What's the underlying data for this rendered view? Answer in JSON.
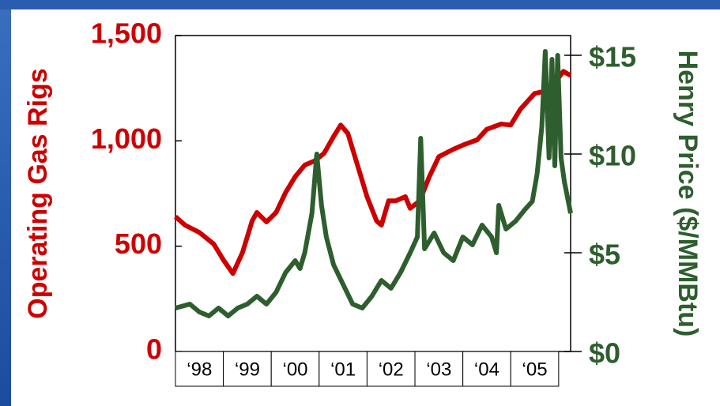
{
  "chart_data": {
    "type": "line",
    "ylabel": "Operating Gas Rigs",
    "y2label": "Henry Price ($/MMBtu)",
    "xlim": [
      1998,
      2006.25
    ],
    "xticks": [
      {
        "value": 1998.5,
        "label": "‘98"
      },
      {
        "value": 1999.5,
        "label": "‘99"
      },
      {
        "value": 2000.5,
        "label": "‘00"
      },
      {
        "value": 2001.5,
        "label": "‘01"
      },
      {
        "value": 2002.5,
        "label": "‘02"
      },
      {
        "value": 2003.5,
        "label": "‘03"
      },
      {
        "value": 2004.5,
        "label": "‘04"
      },
      {
        "value": 2005.5,
        "label": "‘05"
      }
    ],
    "ylim": [
      0,
      1500
    ],
    "yticks": [
      0,
      500,
      {
        "value": 1000,
        "label": "1,000"
      },
      {
        "value": 1500,
        "label": "1,500"
      }
    ],
    "y2lim": [
      0,
      16
    ],
    "y2ticks": [
      {
        "value": 0,
        "label": "$0"
      },
      {
        "value": 5,
        "label": "$5"
      },
      {
        "value": 10,
        "label": "$10"
      },
      {
        "value": 15,
        "label": "$15"
      }
    ],
    "series": [
      {
        "color": "#cc0000",
        "axis": "y",
        "x": [
          1998.0,
          1998.2,
          1998.5,
          1998.8,
          1999.0,
          1999.2,
          1999.4,
          1999.6,
          1999.7,
          1999.9,
          2000.1,
          2000.3,
          2000.5,
          2000.7,
          2000.9,
          2001.1,
          2001.3,
          2001.45,
          2001.6,
          2001.8,
          2002.0,
          2002.2,
          2002.3,
          2002.45,
          2002.6,
          2002.8,
          2002.9,
          2003.1,
          2003.3,
          2003.5,
          2003.8,
          2004.0,
          2004.3,
          2004.5,
          2004.8,
          2005.0,
          2005.2,
          2005.5,
          2005.7,
          2005.85,
          2006.0,
          2006.1,
          2006.25
        ],
        "values": [
          640,
          600,
          565,
          510,
          435,
          370,
          470,
          620,
          660,
          615,
          660,
          755,
          830,
          885,
          905,
          940,
          1020,
          1075,
          1035,
          885,
          735,
          620,
          600,
          715,
          715,
          735,
          680,
          715,
          830,
          925,
          960,
          980,
          1005,
          1055,
          1080,
          1075,
          1150,
          1225,
          1235,
          1225,
          1300,
          1330,
          1310
        ]
      },
      {
        "color": "#2e5e2e",
        "axis": "y2",
        "x": [
          1998.0,
          1998.3,
          1998.5,
          1998.7,
          1998.9,
          1999.1,
          1999.3,
          1999.5,
          1999.7,
          1999.9,
          2000.1,
          2000.3,
          2000.5,
          2000.6,
          2000.7,
          2000.85,
          2000.95,
          2001.05,
          2001.15,
          2001.3,
          2001.5,
          2001.7,
          2001.9,
          2002.1,
          2002.3,
          2002.5,
          2002.7,
          2002.9,
          2003.05,
          2003.12,
          2003.2,
          2003.4,
          2003.6,
          2003.8,
          2004.0,
          2004.2,
          2004.4,
          2004.6,
          2004.7,
          2004.75,
          2004.9,
          2005.1,
          2005.3,
          2005.45,
          2005.55,
          2005.65,
          2005.72,
          2005.8,
          2005.86,
          2005.92,
          2005.98,
          2006.05,
          2006.12,
          2006.25
        ],
        "values": [
          2.2,
          2.4,
          2.0,
          1.8,
          2.2,
          1.8,
          2.2,
          2.4,
          2.8,
          2.4,
          3.0,
          4.0,
          4.6,
          4.2,
          5.0,
          7.0,
          10.0,
          7.4,
          5.8,
          4.4,
          3.4,
          2.4,
          2.2,
          2.8,
          3.6,
          3.2,
          4.0,
          5.0,
          5.8,
          10.8,
          5.2,
          6.0,
          5.0,
          4.6,
          5.8,
          5.4,
          6.4,
          5.8,
          5.0,
          7.4,
          6.2,
          6.6,
          7.2,
          7.6,
          9.0,
          11.4,
          15.2,
          9.8,
          14.8,
          9.4,
          15.0,
          9.8,
          8.6,
          7.0
        ]
      }
    ]
  }
}
